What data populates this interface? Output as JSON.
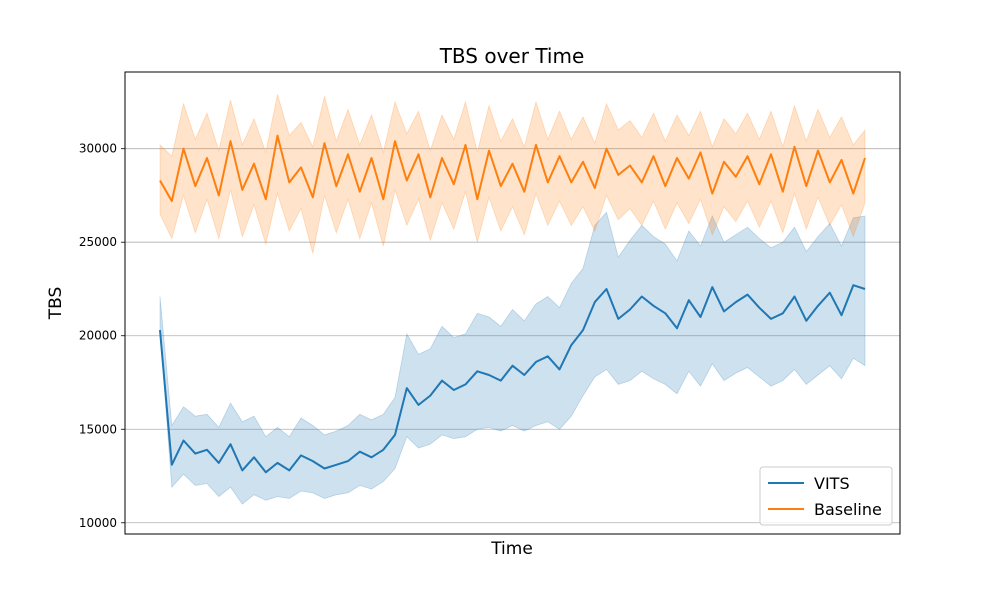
{
  "chart_data": {
    "type": "line",
    "title": "TBS over Time",
    "xlabel": "Time",
    "ylabel": "TBS",
    "ylim": [
      9400,
      34100
    ],
    "yticks": [
      10000,
      15000,
      20000,
      25000,
      30000
    ],
    "ytick_labels": [
      "10000",
      "15000",
      "20000",
      "25000",
      "30000"
    ],
    "grid": "y-major",
    "legend_position": "lower-right",
    "x": [
      0,
      5,
      10,
      15,
      20,
      25,
      30,
      35,
      40,
      45,
      50,
      55,
      60,
      65,
      70,
      75,
      80,
      85,
      90,
      95,
      100,
      105,
      110,
      115,
      120,
      125,
      130,
      135,
      140,
      145,
      150,
      155,
      160,
      165,
      170,
      175,
      180,
      185,
      190,
      195,
      200,
      205,
      210,
      215,
      220,
      225,
      230,
      235,
      240,
      245,
      250,
      255,
      260,
      265,
      270,
      275,
      280,
      285,
      290,
      295,
      300
    ],
    "series": [
      {
        "name": "VITS",
        "color": "#1f77b4",
        "values": [
          20300,
          13100,
          14400,
          13700,
          13900,
          13200,
          14200,
          12800,
          13500,
          12700,
          13200,
          12800,
          13600,
          13300,
          12900,
          13100,
          13300,
          13800,
          13500,
          13900,
          14700,
          17200,
          16300,
          16800,
          17600,
          17100,
          17400,
          18100,
          17900,
          17600,
          18400,
          17900,
          18600,
          18900,
          18200,
          19500,
          20300,
          21800,
          22500,
          20900,
          21400,
          22100,
          21600,
          21200,
          20400,
          21900,
          21000,
          22600,
          21300,
          21800,
          22200,
          21500,
          20900,
          21200,
          22100,
          20800,
          21600,
          22300,
          21100,
          22700,
          22500
        ],
        "lower": [
          20300,
          11900,
          12600,
          12000,
          12100,
          11400,
          11900,
          11000,
          11500,
          11200,
          11400,
          11300,
          11700,
          11600,
          11300,
          11500,
          11600,
          12000,
          11800,
          12200,
          12900,
          14600,
          14000,
          14200,
          14700,
          14500,
          14600,
          15000,
          15100,
          14900,
          15200,
          14900,
          15200,
          15400,
          15000,
          15700,
          16800,
          17800,
          18200,
          17400,
          17600,
          18100,
          17700,
          17400,
          16900,
          18100,
          17300,
          18500,
          17600,
          18000,
          18300,
          17800,
          17300,
          17600,
          18200,
          17400,
          17900,
          18400,
          17700,
          18800,
          18400
        ],
        "upper": [
          22100,
          15200,
          16200,
          15700,
          15800,
          15100,
          16400,
          15400,
          15700,
          14600,
          15100,
          14600,
          15600,
          15200,
          14700,
          14900,
          15200,
          15800,
          15500,
          15800,
          16700,
          20100,
          19000,
          19300,
          20500,
          19900,
          20100,
          21200,
          21000,
          20500,
          21400,
          20800,
          21700,
          22100,
          21500,
          22800,
          23600,
          25900,
          26600,
          24200,
          25100,
          25900,
          25300,
          24900,
          24000,
          25600,
          24800,
          26400,
          25000,
          25400,
          25800,
          25200,
          24700,
          25000,
          25800,
          24500,
          25300,
          26000,
          24800,
          26300,
          26400
        ]
      },
      {
        "name": "Baseline",
        "color": "#ff7f0e",
        "values": [
          28300,
          27200,
          30000,
          28000,
          29500,
          27500,
          30400,
          27800,
          29200,
          27300,
          30700,
          28200,
          29000,
          27400,
          30300,
          28000,
          29700,
          27700,
          29500,
          27300,
          30400,
          28300,
          29700,
          27400,
          29500,
          28100,
          30200,
          27300,
          29900,
          28000,
          29200,
          27700,
          30200,
          28200,
          29600,
          28200,
          29300,
          27900,
          30000,
          28600,
          29100,
          28200,
          29600,
          28000,
          29500,
          28400,
          29800,
          27600,
          29300,
          28500,
          29600,
          28100,
          29700,
          27700,
          30100,
          28000,
          29900,
          28200,
          29400,
          27600,
          29500
        ],
        "lower": [
          26500,
          25200,
          27500,
          25500,
          27300,
          25200,
          27800,
          25300,
          27000,
          24900,
          27600,
          25600,
          26800,
          24400,
          27500,
          25500,
          27300,
          25200,
          27100,
          24800,
          27800,
          25900,
          27300,
          25100,
          27100,
          25700,
          27700,
          25000,
          27400,
          25600,
          26900,
          25400,
          27600,
          25900,
          27200,
          25900,
          26900,
          25600,
          27500,
          26200,
          26800,
          25900,
          27200,
          25700,
          27100,
          26000,
          27300,
          25400,
          26900,
          26100,
          27200,
          25800,
          27200,
          25500,
          27600,
          25700,
          27400,
          25900,
          27000,
          25300,
          27100
        ],
        "upper": [
          30200,
          29600,
          32400,
          30500,
          31900,
          29900,
          32600,
          30200,
          31600,
          29800,
          32900,
          30700,
          31400,
          30100,
          32800,
          30400,
          32100,
          30200,
          31800,
          29800,
          32500,
          30800,
          32000,
          29900,
          31800,
          30500,
          32500,
          29800,
          32300,
          30400,
          31600,
          30100,
          32500,
          30500,
          32000,
          30500,
          31700,
          30300,
          32400,
          31000,
          31500,
          30600,
          31900,
          30400,
          31800,
          30700,
          32000,
          30100,
          31600,
          30800,
          31900,
          30500,
          32000,
          30100,
          32300,
          30400,
          32100,
          30600,
          31700,
          30200,
          31000
        ]
      }
    ]
  }
}
